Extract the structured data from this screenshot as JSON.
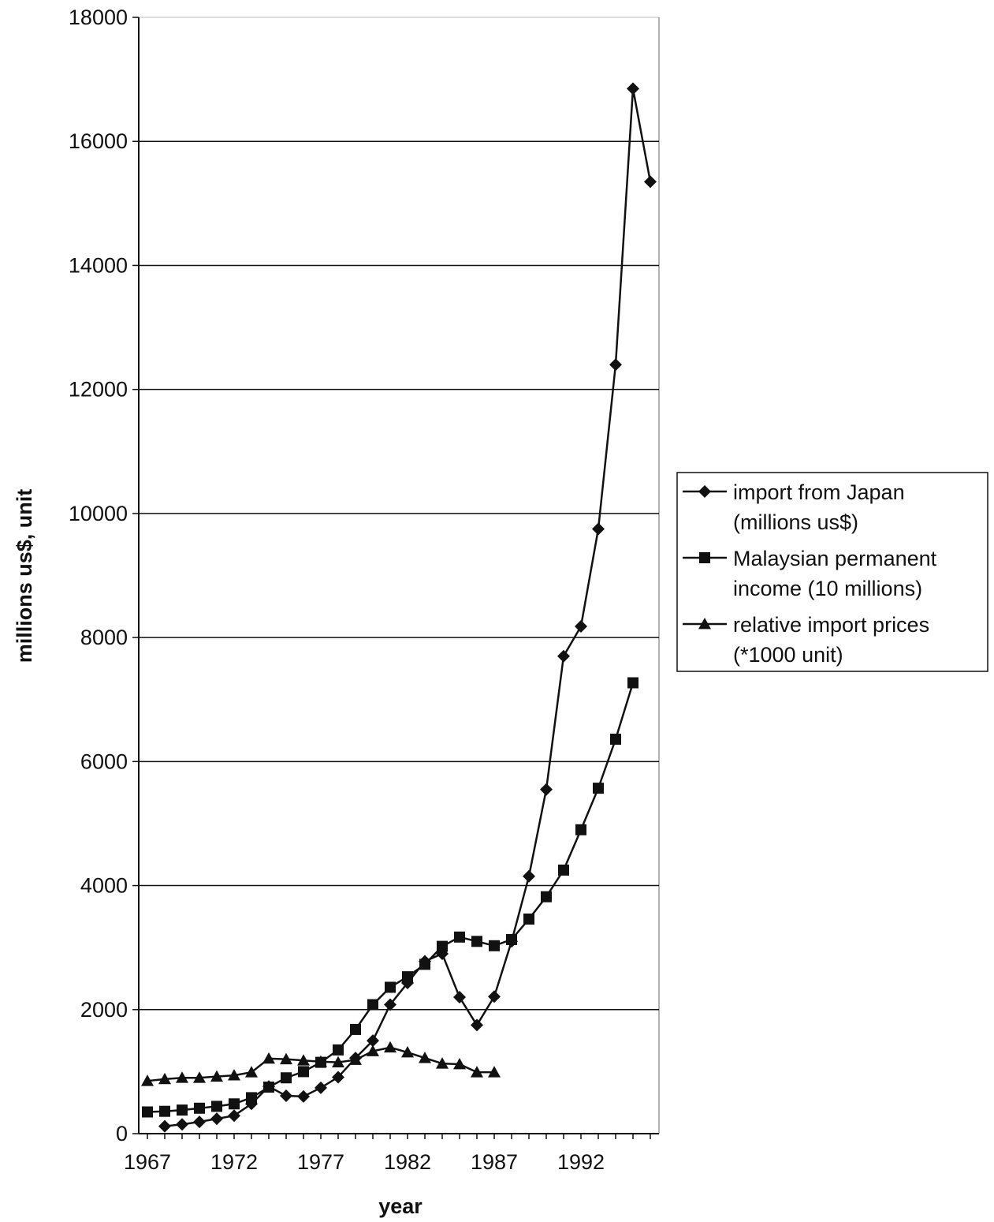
{
  "chart_data": {
    "type": "line",
    "xlabel": "year",
    "ylabel": "millions us$, unit",
    "xlim": [
      1966.5,
      1996.5
    ],
    "ylim": [
      0,
      18000
    ],
    "x_ticks": [
      1967,
      1972,
      1977,
      1982,
      1987,
      1992
    ],
    "x_tick_labels": [
      "1967",
      "1972",
      "1977",
      "1982",
      "1987",
      "1992"
    ],
    "y_ticks": [
      0,
      2000,
      4000,
      6000,
      8000,
      10000,
      12000,
      14000,
      16000,
      18000
    ],
    "y_tick_labels": [
      "0",
      "2000",
      "4000",
      "6000",
      "8000",
      "10000",
      "12000",
      "14000",
      "16000",
      "18000"
    ],
    "grid": "horizontal",
    "legend_position": "right",
    "line_color": "#111111",
    "series": [
      {
        "name": "import from Japan (millions us$)",
        "legend_lines": [
          "import from Japan",
          "(millions us$)"
        ],
        "marker": "diamond",
        "x": [
          1968,
          1969,
          1970,
          1971,
          1972,
          1973,
          1974,
          1975,
          1976,
          1977,
          1978,
          1979,
          1980,
          1981,
          1982,
          1983,
          1984,
          1985,
          1986,
          1987,
          1988,
          1989,
          1990,
          1991,
          1992,
          1993,
          1994,
          1995,
          1996
        ],
        "values": [
          120,
          150,
          190,
          240,
          290,
          480,
          760,
          610,
          600,
          740,
          910,
          1220,
          1500,
          2080,
          2430,
          2780,
          2900,
          2200,
          1750,
          2210,
          3100,
          4150,
          5550,
          7700,
          8180,
          9750,
          12400,
          16850,
          15350
        ]
      },
      {
        "name": "Malaysian permanent income (10 millions)",
        "legend_lines": [
          "Malaysian permanent",
          "income (10 millions)"
        ],
        "marker": "square",
        "x": [
          1967,
          1968,
          1969,
          1970,
          1971,
          1972,
          1973,
          1974,
          1975,
          1976,
          1977,
          1978,
          1979,
          1980,
          1981,
          1982,
          1983,
          1984,
          1985,
          1986,
          1987,
          1988,
          1989,
          1990,
          1991,
          1992,
          1993,
          1994,
          1995
        ],
        "values": [
          350,
          360,
          380,
          410,
          440,
          480,
          580,
          750,
          900,
          1000,
          1150,
          1350,
          1680,
          2080,
          2360,
          2530,
          2730,
          3020,
          3170,
          3100,
          3030,
          3130,
          3460,
          3820,
          4250,
          4900,
          5570,
          6360,
          7270
        ]
      },
      {
        "name": "relative import prices (*1000 unit)",
        "legend_lines": [
          "relative import prices",
          "(*1000 unit)"
        ],
        "marker": "triangle",
        "x": [
          1967,
          1968,
          1969,
          1970,
          1971,
          1972,
          1973,
          1974,
          1975,
          1976,
          1977,
          1978,
          1979,
          1980,
          1981,
          1982,
          1983,
          1984,
          1985,
          1986,
          1987
        ],
        "values": [
          850,
          880,
          900,
          900,
          920,
          940,
          990,
          1210,
          1200,
          1180,
          1160,
          1150,
          1190,
          1330,
          1390,
          1310,
          1220,
          1130,
          1120,
          990,
          990
        ]
      }
    ]
  }
}
